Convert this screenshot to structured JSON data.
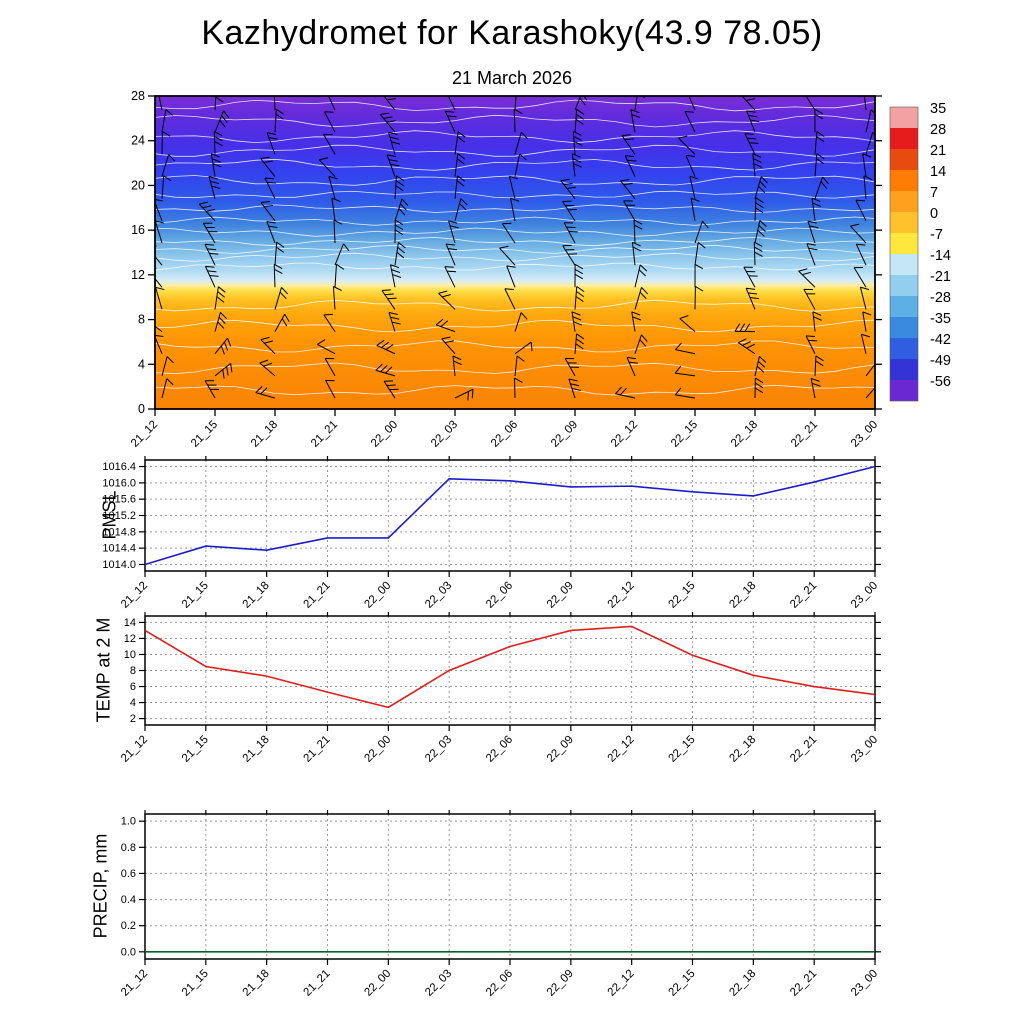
{
  "title": "Kazhydromet for Karashoky(43.9 78.05)",
  "subtitle": "21 March 2026",
  "time_labels": [
    "21_12",
    "21_15",
    "21_18",
    "21_21",
    "22_00",
    "22_03",
    "22_06",
    "22_09",
    "22_12",
    "22_15",
    "22_18",
    "22_21",
    "23_00"
  ],
  "chart_data": [
    {
      "type": "heatmap",
      "name": "temperature cross-section with wind barbs",
      "title": "21 March 2026",
      "categories": [
        "21_12",
        "21_15",
        "21_18",
        "21_21",
        "22_00",
        "22_03",
        "22_06",
        "22_09",
        "22_12",
        "22_15",
        "22_18",
        "22_21",
        "23_00"
      ],
      "yticks": [
        "28",
        "24",
        "20",
        "16",
        "12",
        "8",
        "4",
        "0"
      ],
      "ylim": [
        0,
        28
      ],
      "overlays": [
        "wind-barbs-black",
        "contour-lines-white"
      ],
      "fill_gradient_top_to_bottom": [
        {
          "offset": "0%",
          "color": "#7a2ed6"
        },
        {
          "offset": "7%",
          "color": "#5f2cdc"
        },
        {
          "offset": "16%",
          "color": "#4530e8"
        },
        {
          "offset": "25%",
          "color": "#3343ee"
        },
        {
          "offset": "34%",
          "color": "#2f5ce8"
        },
        {
          "offset": "41%",
          "color": "#3f83de"
        },
        {
          "offset": "46%",
          "color": "#63a8e0"
        },
        {
          "offset": "51%",
          "color": "#8cc6ec"
        },
        {
          "offset": "56%",
          "color": "#b2dcf4"
        },
        {
          "offset": "59%",
          "color": "#d8ecf6"
        },
        {
          "offset": "60.5%",
          "color": "#fdeea6"
        },
        {
          "offset": "62%",
          "color": "#ffe14e"
        },
        {
          "offset": "65%",
          "color": "#ffc022"
        },
        {
          "offset": "70%",
          "color": "#ffa70e"
        },
        {
          "offset": "78%",
          "color": "#ff9505"
        },
        {
          "offset": "100%",
          "color": "#f88306"
        }
      ],
      "colorbar": {
        "tick_labels": [
          "35",
          "28",
          "21",
          "14",
          "7",
          "0",
          "-7",
          "-14",
          "-21",
          "-28",
          "-35",
          "-42",
          "-49",
          "-56"
        ],
        "colors": [
          "#f2a2a2",
          "#e61c1c",
          "#e84b10",
          "#ff7d05",
          "#ffa01e",
          "#ffc22a",
          "#ffe73e",
          "#c4e6f5",
          "#92cfee",
          "#5cb0e6",
          "#3a8ae0",
          "#2f5fe0",
          "#3434d6",
          "#6a28d2"
        ]
      }
    },
    {
      "type": "line",
      "name": "PMSL",
      "color": "#1c1ccd",
      "categories": [
        "21_12",
        "21_15",
        "21_18",
        "21_21",
        "22_00",
        "22_03",
        "22_06",
        "22_09",
        "22_12",
        "22_15",
        "22_18",
        "22_21",
        "23_00"
      ],
      "values": [
        1014.0,
        1014.45,
        1014.35,
        1014.65,
        1014.65,
        1016.1,
        1016.05,
        1015.9,
        1015.92,
        1015.78,
        1015.68,
        1016.02,
        1016.4
      ],
      "yticks": [
        "1016.4",
        "1016.0",
        "1015.6",
        "1015.2",
        "1014.8",
        "1014.4",
        "1014.0"
      ],
      "ylim": [
        1013.84,
        1016.56
      ]
    },
    {
      "type": "line",
      "name": "TEMP at 2 M",
      "color": "#e01e1e",
      "categories": [
        "21_12",
        "21_15",
        "21_18",
        "21_21",
        "22_00",
        "22_03",
        "22_06",
        "22_09",
        "22_12",
        "22_15",
        "22_18",
        "22_21",
        "23_00"
      ],
      "values": [
        13,
        8.5,
        7.3,
        5.3,
        3.4,
        8,
        11,
        13,
        13.5,
        9.9,
        7.4,
        6,
        5
      ],
      "yticks": [
        "14",
        "12",
        "10",
        "8",
        "6",
        "4",
        "2"
      ],
      "ylim": [
        1.2,
        14.8
      ]
    },
    {
      "type": "line",
      "name": "PRECIP, mm",
      "color": "#0a5c2c",
      "categories": [
        "21_12",
        "21_15",
        "21_18",
        "21_21",
        "22_00",
        "22_03",
        "22_06",
        "22_09",
        "22_12",
        "22_15",
        "22_18",
        "22_21",
        "23_00"
      ],
      "values": [
        0,
        0,
        0,
        0,
        0,
        0,
        0,
        0,
        0,
        0,
        0,
        0,
        0
      ],
      "yticks": [
        "1.0",
        "0.8",
        "0.6",
        "0.4",
        "0.2",
        "0.0"
      ],
      "ylim": [
        -0.055,
        1.055
      ]
    }
  ]
}
